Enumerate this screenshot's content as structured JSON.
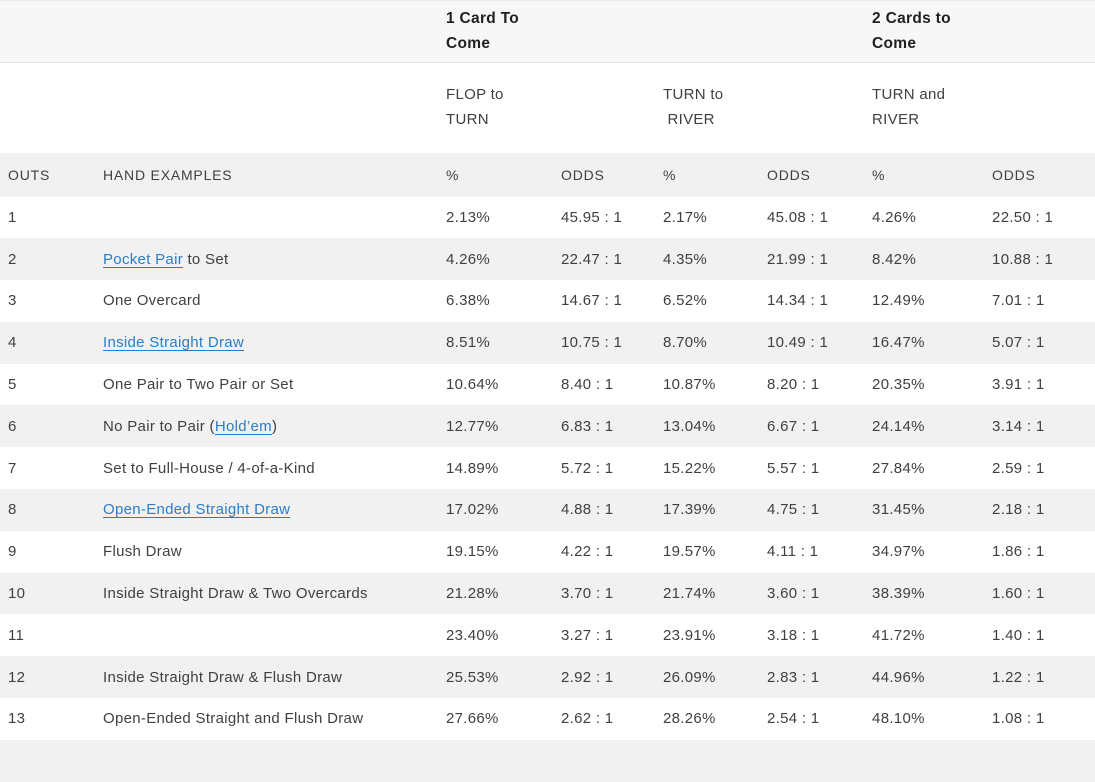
{
  "colors": {
    "link": "#2d7dc5",
    "stripe": "#f1f1f1",
    "header_band": "#f7f7f7",
    "text": "#404040",
    "heading_text": "#1f1f1f"
  },
  "table": {
    "group_headers": {
      "one_card": "1 Card To\nCome",
      "two_cards": "2 Cards to\nCome"
    },
    "street_headers": {
      "flop_to_turn": "FLOP to\nTURN",
      "turn_to_river": "TURN to\n RIVER",
      "turn_and_river": "TURN and\nRIVER"
    },
    "columns": [
      "OUTS",
      "HAND EXAMPLES",
      "%",
      "ODDS",
      "%",
      "ODDS",
      "%",
      "ODDS"
    ],
    "rows": [
      {
        "outs": "1",
        "hand": [],
        "cells": [
          "2.13%",
          "45.95 : 1",
          "2.17%",
          "45.08 : 1",
          "4.26%",
          "22.50 : 1"
        ]
      },
      {
        "outs": "2",
        "hand": [
          {
            "text": "Pocket Pair",
            "link": true
          },
          {
            "text": " to Set",
            "link": false
          }
        ],
        "cells": [
          "4.26%",
          "22.47 : 1",
          "4.35%",
          "21.99 : 1",
          "8.42%",
          "10.88 : 1"
        ]
      },
      {
        "outs": "3",
        "hand": [
          {
            "text": "One Overcard",
            "link": false
          }
        ],
        "cells": [
          "6.38%",
          "14.67 : 1",
          "6.52%",
          "14.34 : 1",
          "12.49%",
          "7.01 : 1"
        ]
      },
      {
        "outs": "4",
        "hand": [
          {
            "text": "Inside Straight Draw",
            "link": true
          }
        ],
        "cells": [
          "8.51%",
          "10.75 : 1",
          "8.70%",
          "10.49 : 1",
          "16.47%",
          "5.07 : 1"
        ]
      },
      {
        "outs": "5",
        "hand": [
          {
            "text": "One Pair to Two Pair or Set",
            "link": false
          }
        ],
        "cells": [
          "10.64%",
          "8.40 : 1",
          "10.87%",
          "8.20 : 1",
          "20.35%",
          "3.91 : 1"
        ]
      },
      {
        "outs": "6",
        "hand": [
          {
            "text": "No Pair to Pair (",
            "link": false
          },
          {
            "text": "Hold’em",
            "link": true
          },
          {
            "text": ")",
            "link": false
          }
        ],
        "cells": [
          "12.77%",
          "6.83 : 1",
          "13.04%",
          "6.67 : 1",
          "24.14%",
          "3.14 : 1"
        ]
      },
      {
        "outs": "7",
        "hand": [
          {
            "text": "Set to Full-House / 4-of-a-Kind",
            "link": false
          }
        ],
        "cells": [
          "14.89%",
          "5.72 : 1",
          "15.22%",
          "5.57 : 1",
          "27.84%",
          "2.59 : 1"
        ]
      },
      {
        "outs": "8",
        "hand": [
          {
            "text": "Open-Ended Straight Draw",
            "link": true
          }
        ],
        "cells": [
          "17.02%",
          "4.88 : 1",
          "17.39%",
          "4.75 : 1",
          "31.45%",
          "2.18 : 1"
        ]
      },
      {
        "outs": "9",
        "hand": [
          {
            "text": "Flush Draw",
            "link": false
          }
        ],
        "cells": [
          "19.15%",
          "4.22 : 1",
          "19.57%",
          "4.11 : 1",
          "34.97%",
          "1.86 : 1"
        ]
      },
      {
        "outs": "10",
        "hand": [
          {
            "text": "Inside Straight Draw & Two Overcards",
            "link": false
          }
        ],
        "cells": [
          "21.28%",
          "3.70 : 1",
          "21.74%",
          "3.60 : 1",
          "38.39%",
          "1.60 : 1"
        ]
      },
      {
        "outs": "11",
        "hand": [],
        "cells": [
          "23.40%",
          "3.27 : 1",
          "23.91%",
          "3.18 : 1",
          "41.72%",
          "1.40 : 1"
        ]
      },
      {
        "outs": "12",
        "hand": [
          {
            "text": "Inside Straight Draw & Flush Draw",
            "link": false
          }
        ],
        "cells": [
          "25.53%",
          "2.92 : 1",
          "26.09%",
          "2.83 : 1",
          "44.96%",
          "1.22 : 1"
        ]
      },
      {
        "outs": "13",
        "hand": [
          {
            "text": "Open-Ended Straight and Flush Draw",
            "link": false
          }
        ],
        "cells": [
          "27.66%",
          "2.62 : 1",
          "28.26%",
          "2.54 : 1",
          "48.10%",
          "1.08 : 1"
        ]
      }
    ]
  }
}
